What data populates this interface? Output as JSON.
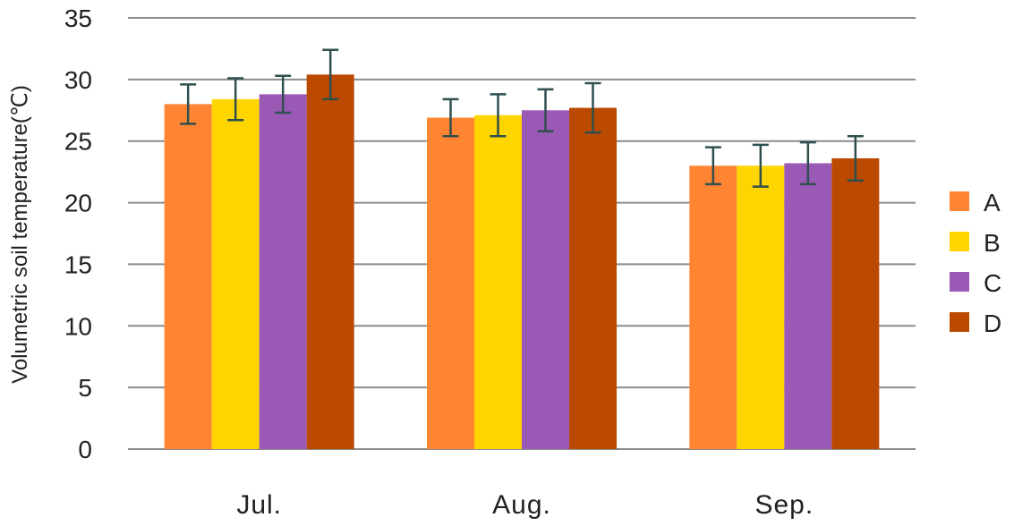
{
  "chart_data": {
    "type": "bar",
    "title": "",
    "xlabel": "",
    "ylabel": "Volumetric soil temperature(℃)",
    "categories": [
      "Jul.",
      "Aug.",
      "Sep."
    ],
    "ylim": [
      0,
      35
    ],
    "yticks": [
      0,
      5,
      10,
      15,
      20,
      25,
      30,
      35
    ],
    "grid": true,
    "legend_position": "right",
    "series": [
      {
        "name": "A",
        "color": "#FF8533",
        "values": [
          28.0,
          26.9,
          23.0
        ],
        "error": [
          1.6,
          1.5,
          1.5
        ]
      },
      {
        "name": "B",
        "color": "#FFD500",
        "values": [
          28.4,
          27.1,
          23.0
        ],
        "error": [
          1.7,
          1.7,
          1.7
        ]
      },
      {
        "name": "C",
        "color": "#9B59B6",
        "values": [
          28.8,
          27.5,
          23.2
        ],
        "error": [
          1.5,
          1.7,
          1.7
        ]
      },
      {
        "name": "D",
        "color": "#BB4A00",
        "values": [
          30.4,
          27.7,
          23.6
        ],
        "error": [
          2.0,
          2.0,
          1.8
        ]
      }
    ],
    "error_bar_color": "#2F4F4F"
  }
}
